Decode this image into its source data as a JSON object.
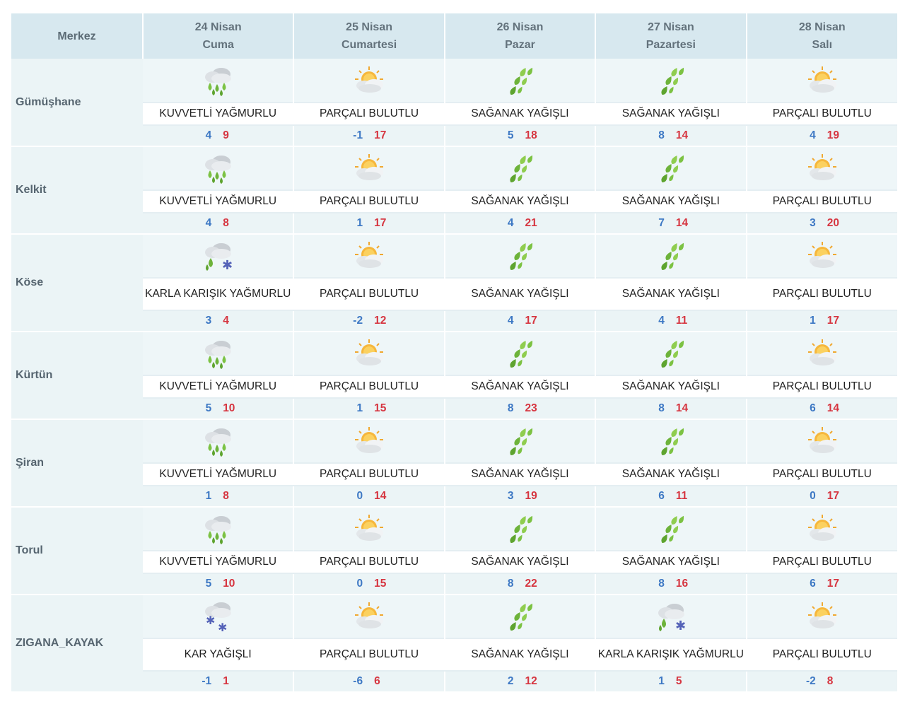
{
  "header": {
    "merkez": "Merkez",
    "days": [
      {
        "date": "24 Nisan",
        "weekday": "Cuma"
      },
      {
        "date": "25 Nisan",
        "weekday": "Cumartesi"
      },
      {
        "date": "26 Nisan",
        "weekday": "Pazar"
      },
      {
        "date": "27 Nisan",
        "weekday": "Pazartesi"
      },
      {
        "date": "28 Nisan",
        "weekday": "Salı"
      }
    ]
  },
  "colors": {
    "header_bg": "#d7e8ef",
    "row_bg": "#ebf4f6",
    "min_temp": "#3d78c4",
    "max_temp": "#d63540"
  },
  "rows": [
    {
      "city": "Gümüşhane",
      "days": [
        {
          "icon": "heavy-rain-icon",
          "desc": "KUVVETLİ YAĞMURLU",
          "min": "4",
          "max": "9"
        },
        {
          "icon": "partly-cloudy-icon",
          "desc": "PARÇALI BULUTLU",
          "min": "-1",
          "max": "17"
        },
        {
          "icon": "showers-icon",
          "desc": "SAĞANAK YAĞIŞLI",
          "min": "5",
          "max": "18"
        },
        {
          "icon": "showers-icon",
          "desc": "SAĞANAK YAĞIŞLI",
          "min": "8",
          "max": "14"
        },
        {
          "icon": "partly-cloudy-icon",
          "desc": "PARÇALI BULUTLU",
          "min": "4",
          "max": "19"
        }
      ]
    },
    {
      "city": "Kelkit",
      "days": [
        {
          "icon": "heavy-rain-icon",
          "desc": "KUVVETLİ YAĞMURLU",
          "min": "4",
          "max": "8"
        },
        {
          "icon": "partly-cloudy-icon",
          "desc": "PARÇALI BULUTLU",
          "min": "1",
          "max": "17"
        },
        {
          "icon": "showers-icon",
          "desc": "SAĞANAK YAĞIŞLI",
          "min": "4",
          "max": "21"
        },
        {
          "icon": "showers-icon",
          "desc": "SAĞANAK YAĞIŞLI",
          "min": "7",
          "max": "14"
        },
        {
          "icon": "partly-cloudy-icon",
          "desc": "PARÇALI BULUTLU",
          "min": "3",
          "max": "20"
        }
      ]
    },
    {
      "city": "Köse",
      "days": [
        {
          "icon": "sleet-icon",
          "desc": "KARLA KARIŞIK YAĞMURLU",
          "min": "3",
          "max": "4"
        },
        {
          "icon": "partly-cloudy-icon",
          "desc": "PARÇALI BULUTLU",
          "min": "-2",
          "max": "12"
        },
        {
          "icon": "showers-icon",
          "desc": "SAĞANAK YAĞIŞLI",
          "min": "4",
          "max": "17"
        },
        {
          "icon": "showers-icon",
          "desc": "SAĞANAK YAĞIŞLI",
          "min": "4",
          "max": "11"
        },
        {
          "icon": "partly-cloudy-icon",
          "desc": "PARÇALI BULUTLU",
          "min": "1",
          "max": "17"
        }
      ]
    },
    {
      "city": "Kürtün",
      "days": [
        {
          "icon": "heavy-rain-icon",
          "desc": "KUVVETLİ YAĞMURLU",
          "min": "5",
          "max": "10"
        },
        {
          "icon": "partly-cloudy-icon",
          "desc": "PARÇALI BULUTLU",
          "min": "1",
          "max": "15"
        },
        {
          "icon": "showers-icon",
          "desc": "SAĞANAK YAĞIŞLI",
          "min": "8",
          "max": "23"
        },
        {
          "icon": "showers-icon",
          "desc": "SAĞANAK YAĞIŞLI",
          "min": "8",
          "max": "14"
        },
        {
          "icon": "partly-cloudy-icon",
          "desc": "PARÇALI BULUTLU",
          "min": "6",
          "max": "14"
        }
      ]
    },
    {
      "city": "Şiran",
      "days": [
        {
          "icon": "heavy-rain-icon",
          "desc": "KUVVETLİ YAĞMURLU",
          "min": "1",
          "max": "8"
        },
        {
          "icon": "partly-cloudy-icon",
          "desc": "PARÇALI BULUTLU",
          "min": "0",
          "max": "14"
        },
        {
          "icon": "showers-icon",
          "desc": "SAĞANAK YAĞIŞLI",
          "min": "3",
          "max": "19"
        },
        {
          "icon": "showers-icon",
          "desc": "SAĞANAK YAĞIŞLI",
          "min": "6",
          "max": "11"
        },
        {
          "icon": "partly-cloudy-icon",
          "desc": "PARÇALI BULUTLU",
          "min": "0",
          "max": "17"
        }
      ]
    },
    {
      "city": "Torul",
      "days": [
        {
          "icon": "heavy-rain-icon",
          "desc": "KUVVETLİ YAĞMURLU",
          "min": "5",
          "max": "10"
        },
        {
          "icon": "partly-cloudy-icon",
          "desc": "PARÇALI BULUTLU",
          "min": "0",
          "max": "15"
        },
        {
          "icon": "showers-icon",
          "desc": "SAĞANAK YAĞIŞLI",
          "min": "8",
          "max": "22"
        },
        {
          "icon": "showers-icon",
          "desc": "SAĞANAK YAĞIŞLI",
          "min": "8",
          "max": "16"
        },
        {
          "icon": "partly-cloudy-icon",
          "desc": "PARÇALI BULUTLU",
          "min": "6",
          "max": "17"
        }
      ]
    },
    {
      "city": "ZIGANA_KAYAK",
      "days": [
        {
          "icon": "snow-icon",
          "desc": "KAR YAĞIŞLI",
          "min": "-1",
          "max": "1"
        },
        {
          "icon": "partly-cloudy-icon",
          "desc": "PARÇALI BULUTLU",
          "min": "-6",
          "max": "6"
        },
        {
          "icon": "showers-icon",
          "desc": "SAĞANAK YAĞIŞLI",
          "min": "2",
          "max": "12"
        },
        {
          "icon": "sleet-icon",
          "desc": "KARLA KARIŞIK YAĞMURLU",
          "min": "1",
          "max": "5"
        },
        {
          "icon": "partly-cloudy-icon",
          "desc": "PARÇALI BULUTLU",
          "min": "-2",
          "max": "8"
        }
      ]
    }
  ]
}
